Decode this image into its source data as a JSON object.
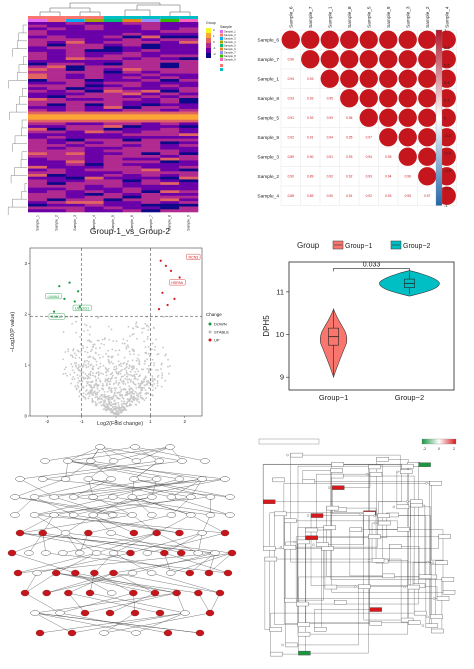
{
  "chart_data": [
    {
      "type": "heatmap",
      "title": "Group-1_vs_Group-2",
      "columns": [
        "Sample_1",
        "Sample_2",
        "Sample_3",
        "Sample_4",
        "Sample_5",
        "Sample_6",
        "Sample_7",
        "Sample_8",
        "Sample_9"
      ],
      "legend_title_group": "Group",
      "legend_title_sample": "Sample",
      "color_scale": [
        "#0d0887",
        "#6a00a8",
        "#b12a90",
        "#e16462",
        "#fca636",
        "#f0f921"
      ],
      "color_scale_ticks": [
        "2",
        "1",
        "0",
        "-1",
        "-2"
      ],
      "highlight_band_color": "#fca636"
    },
    {
      "type": "heatmap",
      "subtype": "correlation",
      "rows": [
        "Sample_6",
        "Sample_7",
        "Sample_1",
        "Sample_8",
        "Sample_5",
        "Sample_9",
        "Sample_3",
        "Sample_2",
        "Sample_4"
      ],
      "columns": [
        "Sample_6",
        "Sample_7",
        "Sample_1",
        "Sample_8",
        "Sample_5",
        "Sample_9",
        "Sample_3",
        "Sample_2",
        "Sample_4"
      ],
      "lower_values": [
        [],
        [
          "0.96"
        ],
        [
          "0.94",
          "0.93"
        ],
        [
          "0.93",
          "0.92",
          "0.95"
        ],
        [
          "0.91",
          "0.92",
          "0.93",
          "0.96"
        ],
        [
          "0.92",
          "0.91",
          "0.94",
          "0.95",
          "0.97"
        ],
        [
          "0.89",
          "0.90",
          "0.91",
          "0.93",
          "0.94",
          "0.95"
        ],
        [
          "0.90",
          "0.89",
          "0.92",
          "0.92",
          "0.93",
          "0.94",
          "0.96"
        ],
        [
          "0.88",
          "0.89",
          "0.90",
          "0.91",
          "0.92",
          "0.93",
          "0.95",
          "0.97"
        ]
      ],
      "scale_ticks": [
        "1",
        "0.8",
        "0.6",
        "0.4",
        "0.2",
        "0",
        "-0.2",
        "-0.4",
        "-0.6",
        "-0.8",
        "-1"
      ],
      "circle_color": "#c4161c"
    },
    {
      "type": "scatter",
      "subtype": "volcano",
      "xlabel": "Log2(Fold change)",
      "ylabel": "−Log10(P value)",
      "xlim": [
        -2.5,
        2.5
      ],
      "ylim": [
        0,
        3.3
      ],
      "xticks": [
        "-2",
        "-1",
        "0",
        "1",
        "2"
      ],
      "yticks": [
        "0",
        "1",
        "2",
        "3"
      ],
      "legend_title": "Change",
      "legend": [
        {
          "label": "DOWN",
          "color": "#1a9641"
        },
        {
          "label": "STABLE",
          "color": "#bdbdbd"
        },
        {
          "label": "UP",
          "color": "#d7191c"
        }
      ],
      "labels_up": [
        {
          "text": "RCN3",
          "x": 2.05,
          "y": 3.12
        },
        {
          "text": "HSPA6",
          "x": 1.55,
          "y": 2.62
        }
      ],
      "labels_down": [
        {
          "text": "LMAN1",
          "x": -2.05,
          "y": 2.35
        },
        {
          "text": "UBE2G1",
          "x": -1.25,
          "y": 2.12
        },
        {
          "text": "RAB12",
          "x": -1.95,
          "y": 1.95
        }
      ],
      "points_up": [
        [
          1.3,
          3.05
        ],
        [
          1.45,
          2.95
        ],
        [
          1.6,
          2.85
        ],
        [
          1.35,
          2.42
        ],
        [
          1.7,
          2.3
        ],
        [
          1.5,
          2.18
        ],
        [
          1.85,
          2.72
        ],
        [
          1.25,
          2.1
        ]
      ],
      "points_down": [
        [
          -1.35,
          2.62
        ],
        [
          -1.1,
          2.45
        ],
        [
          -1.5,
          2.3
        ],
        [
          -1.2,
          2.25
        ],
        [
          -1.65,
          2.55
        ],
        [
          -1.05,
          2.15
        ],
        [
          -1.8,
          2.05
        ]
      ]
    },
    {
      "type": "violin",
      "ylabel": "DPH5",
      "legend_title": "Group",
      "categories": [
        "Group−1",
        "Group−2"
      ],
      "colors": [
        "#f8766d",
        "#00bfc4"
      ],
      "yticks": [
        "9",
        "10",
        "11"
      ],
      "ylim": [
        8.7,
        11.7
      ],
      "groups": [
        {
          "name": "Group−1",
          "min": 9.0,
          "q1": 9.75,
          "median": 9.95,
          "q3": 10.15,
          "max": 10.6
        },
        {
          "name": "Group−2",
          "min": 10.9,
          "q1": 11.1,
          "median": 11.2,
          "q3": 11.3,
          "max": 11.5
        }
      ],
      "pvalue": "0.033"
    },
    {
      "type": "diagram",
      "subtype": "network",
      "node_color_highlight": "#c4161c"
    },
    {
      "type": "diagram",
      "subtype": "pathway",
      "colorbar_ticks": [
        "-2",
        "0",
        "2"
      ],
      "highlight_colors": [
        "#d7191c",
        "#1a9641"
      ]
    }
  ]
}
